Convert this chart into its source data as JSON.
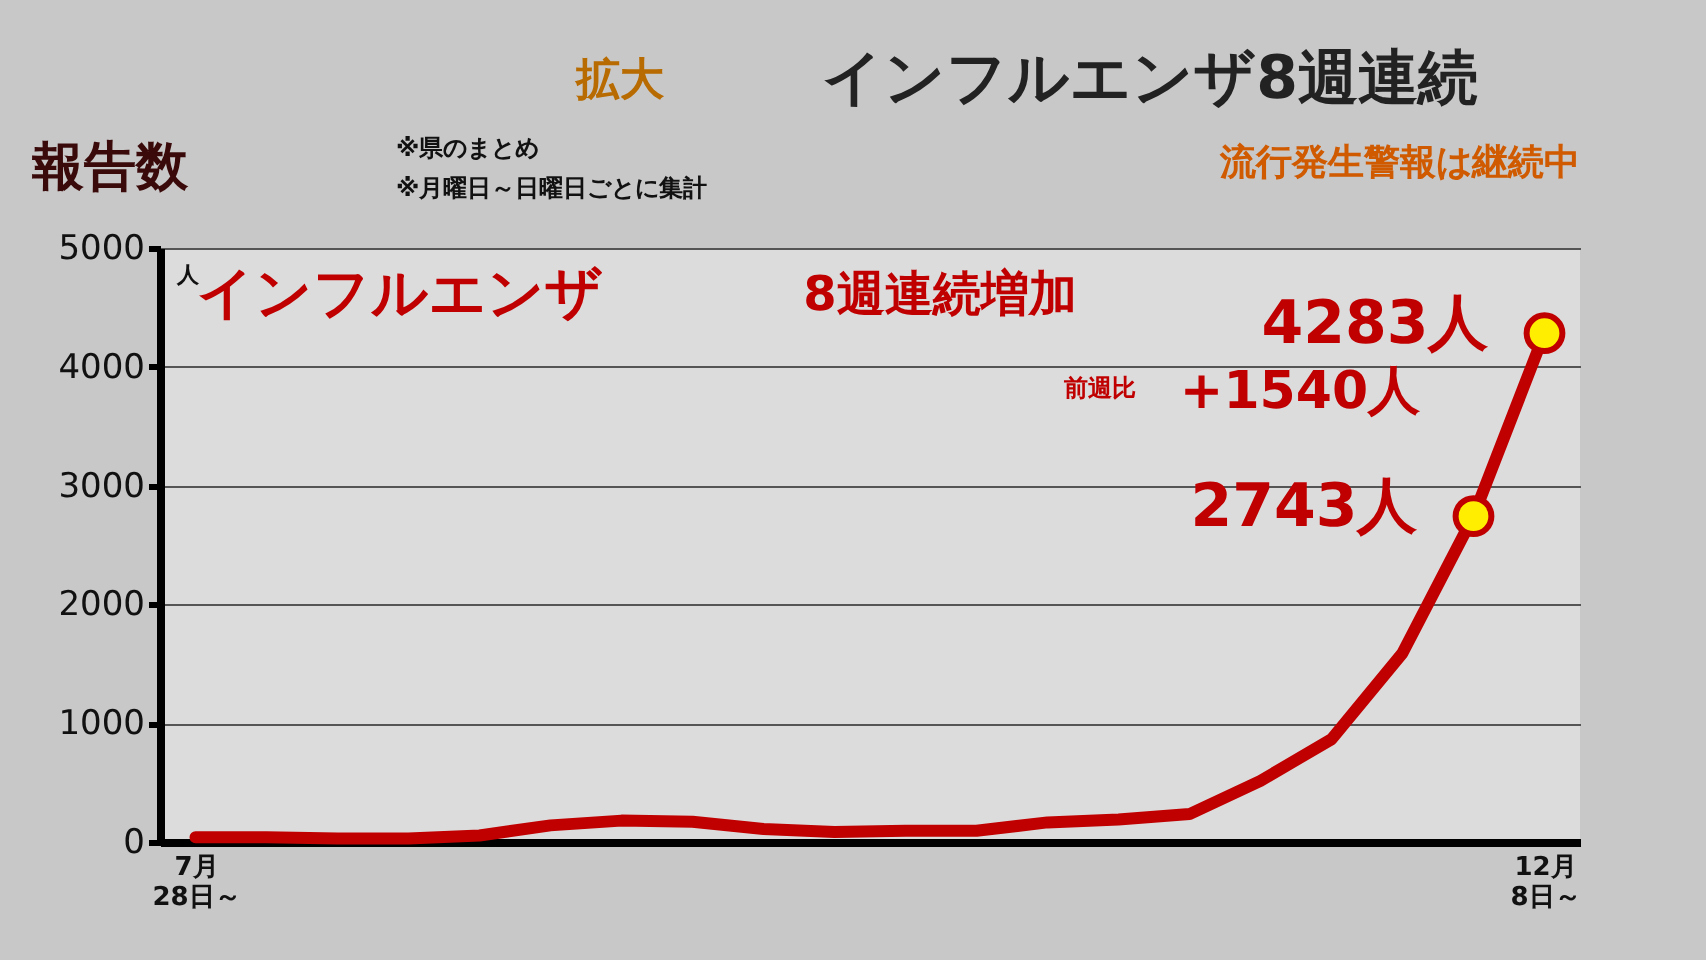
{
  "chart_data": {
    "type": "line",
    "title": "インフルエンザ8週連続",
    "subtitle": "報告数",
    "ylabel": "人",
    "categories": [
      "7月\n28日～",
      null,
      null,
      null,
      null,
      null,
      null,
      null,
      null,
      null,
      null,
      null,
      null,
      null,
      null,
      null,
      null,
      null,
      null,
      "12月\n8日～"
    ],
    "series": [
      {
        "color": "#c00000",
        "values": [
          40,
          40,
          30,
          30,
          55,
          140,
          180,
          170,
          110,
          85,
          95,
          95,
          165,
          190,
          235,
          515,
          865,
          1590,
          2743,
          4283
        ]
      },
      {
        "type": "scatter",
        "color": "#ffee00",
        "marker": "circle",
        "values": [
          null,
          null,
          null,
          null,
          null,
          null,
          null,
          null,
          null,
          null,
          null,
          null,
          null,
          null,
          null,
          null,
          null,
          null,
          2743,
          4283
        ]
      }
    ],
    "value_labels": [
      null,
      null,
      null,
      null,
      null,
      null,
      null,
      null,
      null,
      null,
      null,
      null,
      null,
      null,
      null,
      null,
      null,
      null,
      "2743人",
      "4283人"
    ],
    "annotations": [
      "拡大",
      "インフルエンザ",
      "8週連続増加",
      "前週比",
      "+1540人",
      "※県のまとめ",
      "※月曜日～日曜日ごとに集計",
      "流行発生警報は継続中"
    ],
    "ylim": [
      0,
      5000
    ],
    "yticks": [
      0,
      1000,
      2000,
      3000,
      4000,
      5000
    ],
    "grid": "y",
    "line_style": "solid"
  }
}
